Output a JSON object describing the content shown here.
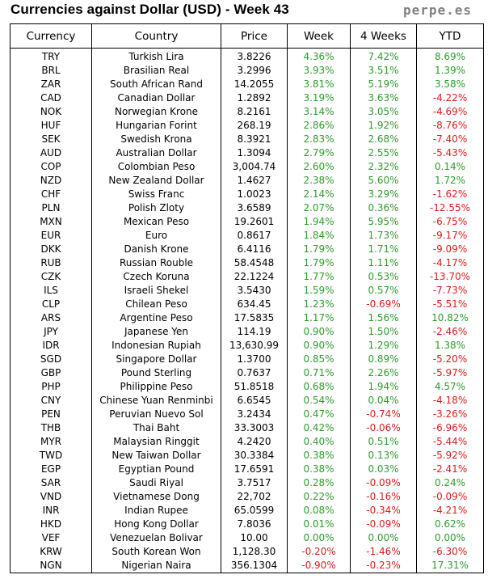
{
  "header": {
    "title": "Currencies against Dollar (USD) - Week 43",
    "brand": "perpe.es"
  },
  "table": {
    "columns": [
      "Currency",
      "Country",
      "Price",
      "Week",
      "4 Weeks",
      "YTD"
    ],
    "rows": [
      [
        "TRY",
        "Turkish Lira",
        "3.8226",
        "4.36%",
        "7.42%",
        "8.69%"
      ],
      [
        "BRL",
        "Brasilian Real",
        "3.2996",
        "3.93%",
        "3.51%",
        "1.39%"
      ],
      [
        "ZAR",
        "South African Rand",
        "14.2055",
        "3.81%",
        "5.19%",
        "3.58%"
      ],
      [
        "CAD",
        "Canadian Dollar",
        "1.2892",
        "3.19%",
        "3.63%",
        "-4.22%"
      ],
      [
        "NOK",
        "Norwegian Krone",
        "8.2161",
        "3.14%",
        "3.05%",
        "-4.69%"
      ],
      [
        "HUF",
        "Hungarian Forint",
        "268.19",
        "2.86%",
        "1.92%",
        "-8.76%"
      ],
      [
        "SEK",
        "Swedish Krona",
        "8.3921",
        "2.83%",
        "2.68%",
        "-7.40%"
      ],
      [
        "AUD",
        "Australian Dollar",
        "1.3094",
        "2.79%",
        "2.55%",
        "-5.43%"
      ],
      [
        "COP",
        "Colombian Peso",
        "3,004.74",
        "2.60%",
        "2.32%",
        "0.14%"
      ],
      [
        "NZD",
        "New Zealand Dollar",
        "1.4627",
        "2.38%",
        "5.60%",
        "1.72%"
      ],
      [
        "CHF",
        "Swiss Franc",
        "1.0023",
        "2.14%",
        "3.29%",
        "-1.62%"
      ],
      [
        "PLN",
        "Polish Zloty",
        "3.6589",
        "2.07%",
        "0.36%",
        "-12.55%"
      ],
      [
        "MXN",
        "Mexican Peso",
        "19.2601",
        "1.94%",
        "5.95%",
        "-6.75%"
      ],
      [
        "EUR",
        "Euro",
        "0.8617",
        "1.84%",
        "1.73%",
        "-9.17%"
      ],
      [
        "DKK",
        "Danish Krone",
        "6.4116",
        "1.79%",
        "1.71%",
        "-9.09%"
      ],
      [
        "RUB",
        "Russian Rouble",
        "58.4548",
        "1.79%",
        "1.11%",
        "-4.17%"
      ],
      [
        "CZK",
        "Czech Koruna",
        "22.1224",
        "1.77%",
        "0.53%",
        "-13.70%"
      ],
      [
        "ILS",
        "Israeli Shekel",
        "3.5430",
        "1.59%",
        "0.57%",
        "-7.73%"
      ],
      [
        "CLP",
        "Chilean Peso",
        "634.45",
        "1.23%",
        "-0.69%",
        "-5.51%"
      ],
      [
        "ARS",
        "Argentine Peso",
        "17.5835",
        "1.17%",
        "1.56%",
        "10.82%"
      ],
      [
        "JPY",
        "Japanese Yen",
        "114.19",
        "0.90%",
        "1.50%",
        "-2.46%"
      ],
      [
        "IDR",
        "Indonesian Rupiah",
        "13,630.99",
        "0.90%",
        "1.29%",
        "1.38%"
      ],
      [
        "SGD",
        "Singapore Dollar",
        "1.3700",
        "0.85%",
        "0.89%",
        "-5.20%"
      ],
      [
        "GBP",
        "Pound Sterling",
        "0.7637",
        "0.71%",
        "2.26%",
        "-5.97%"
      ],
      [
        "PHP",
        "Philippine Peso",
        "51.8518",
        "0.68%",
        "1.94%",
        "4.57%"
      ],
      [
        "CNY",
        "Chinese Yuan Renminbi",
        "6.6545",
        "0.54%",
        "0.04%",
        "-4.18%"
      ],
      [
        "PEN",
        "Peruvian Nuevo Sol",
        "3.2434",
        "0.47%",
        "-0.74%",
        "-3.26%"
      ],
      [
        "THB",
        "Thai Baht",
        "33.3003",
        "0.42%",
        "-0.06%",
        "-6.96%"
      ],
      [
        "MYR",
        "Malaysian Ringgit",
        "4.2420",
        "0.40%",
        "0.51%",
        "-5.44%"
      ],
      [
        "TWD",
        "New Taiwan Dollar",
        "30.3384",
        "0.38%",
        "0.13%",
        "-5.92%"
      ],
      [
        "EGP",
        "Egyptian Pound",
        "17.6591",
        "0.38%",
        "0.03%",
        "-2.41%"
      ],
      [
        "SAR",
        "Saudi Riyal",
        "3.7517",
        "0.28%",
        "-0.09%",
        "0.24%"
      ],
      [
        "VND",
        "Vietnamese Dong",
        "22,702",
        "0.22%",
        "-0.16%",
        "-0.09%"
      ],
      [
        "INR",
        "Indian Rupee",
        "65.0599",
        "0.08%",
        "-0.34%",
        "-4.21%"
      ],
      [
        "HKD",
        "Hong Kong Dollar",
        "7.8036",
        "0.01%",
        "-0.09%",
        "0.62%"
      ],
      [
        "VEF",
        "Venezuelan Bolivar",
        "10.00",
        "0.00%",
        "0.00%",
        "0.00%"
      ],
      [
        "KRW",
        "South Korean Won",
        "1,128.30",
        "-0.20%",
        "-1.46%",
        "-6.30%"
      ],
      [
        "NGN",
        "Nigerian Naira",
        "356.1304",
        "-0.90%",
        "-0.23%",
        "17.31%"
      ]
    ]
  },
  "colors": {
    "positive": "#2e9b2e",
    "negative": "#e01b1b"
  }
}
